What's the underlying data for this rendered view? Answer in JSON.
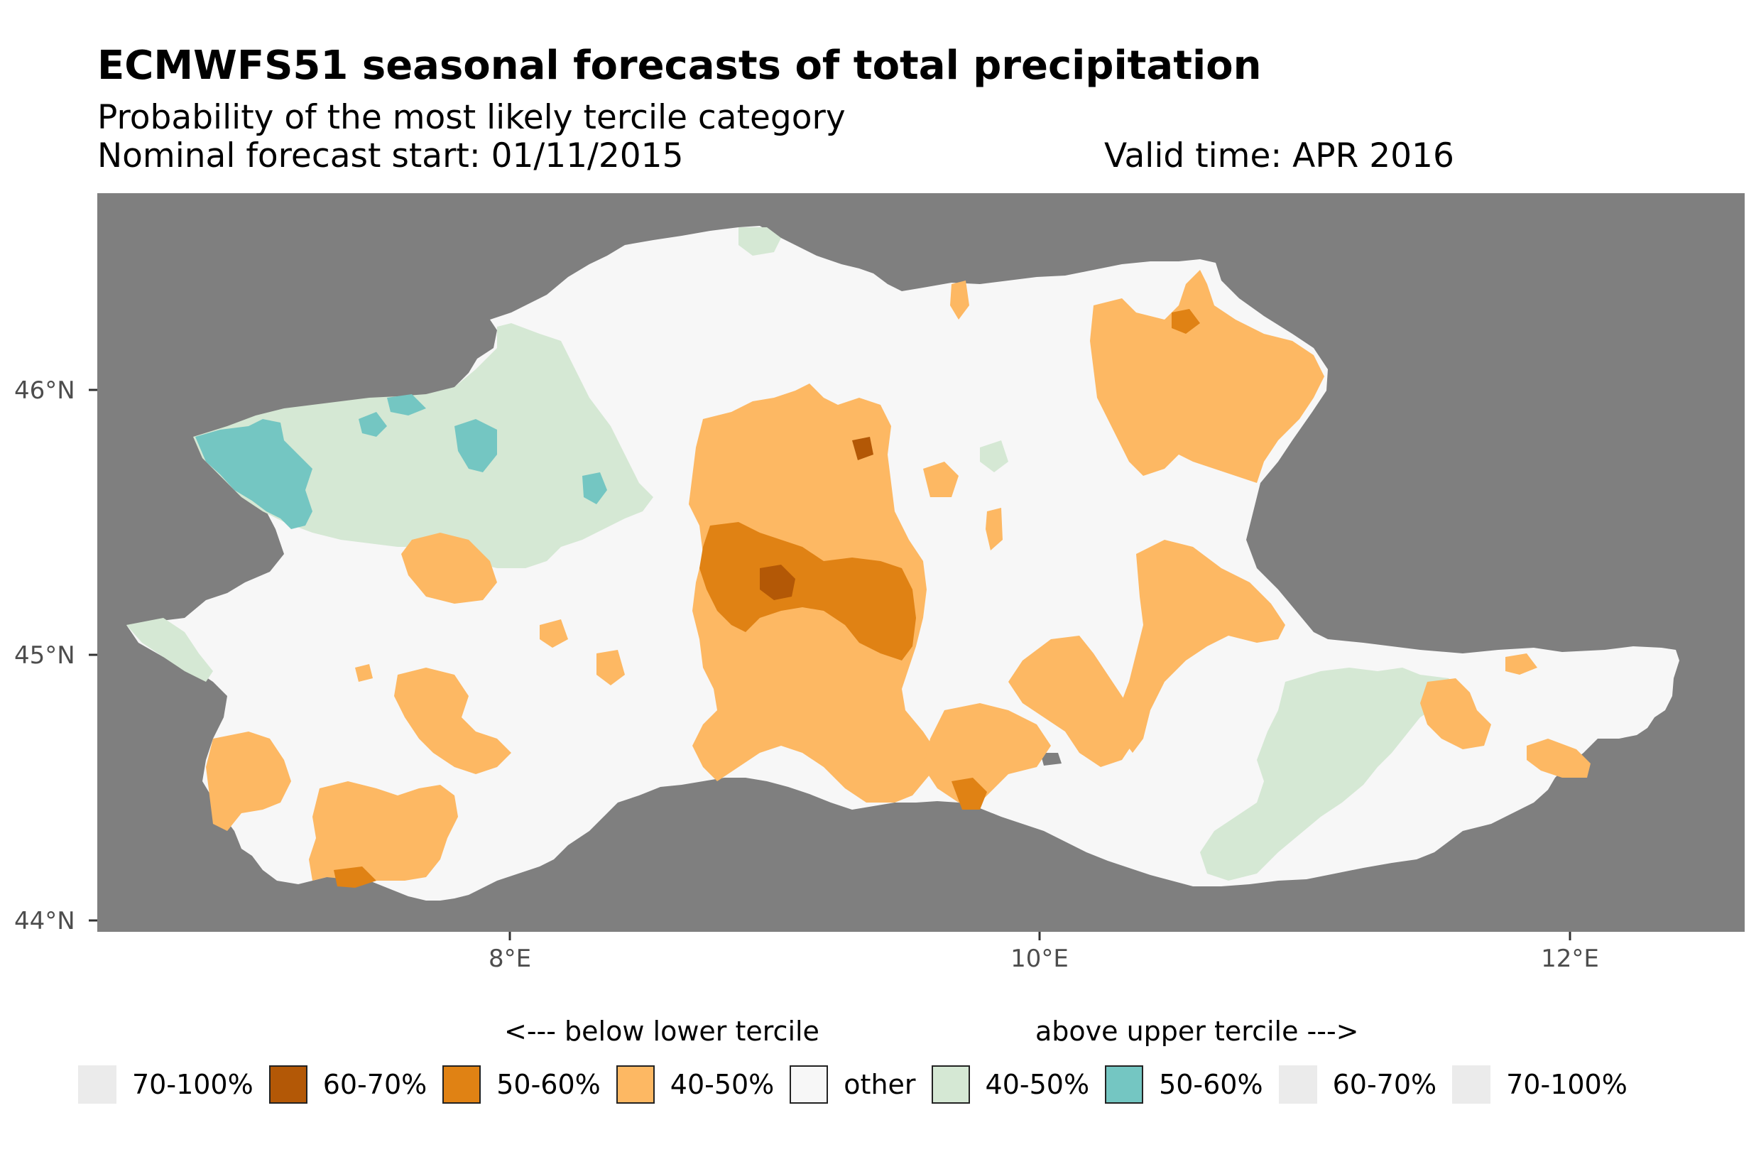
{
  "title": "ECMWFS51 seasonal forecasts of total precipitation",
  "subtitle": "Probability of the most likely tercile category",
  "forecast_start": "Nominal forecast start: 01/11/2015",
  "valid_time": "Valid time: APR 2016",
  "axes": {
    "y_ticks": [
      "46°N",
      "45°N",
      "44°N"
    ],
    "x_ticks": [
      "8°E",
      "10°E",
      "12°E"
    ]
  },
  "legend": {
    "below_label": "<--- below lower tercile",
    "above_label": "above upper tercile --->",
    "items": [
      {
        "label": "70-100%",
        "color": "#ebebeb",
        "blank": true
      },
      {
        "label": "60-70%",
        "color": "#b35806",
        "blank": false
      },
      {
        "label": "50-60%",
        "color": "#e08214",
        "blank": false
      },
      {
        "label": "40-50%",
        "color": "#fdb863",
        "blank": false
      },
      {
        "label": "other",
        "color": "#f7f7f7",
        "blank": false
      },
      {
        "label": "40-50%",
        "color": "#d5e8d4",
        "blank": false
      },
      {
        "label": "50-60%",
        "color": "#74c6c2",
        "blank": false
      },
      {
        "label": "60-70%",
        "color": "#ebebeb",
        "blank": true
      },
      {
        "label": "70-100%",
        "color": "#ebebeb",
        "blank": true
      }
    ]
  },
  "colors": {
    "background": "#7f7f7f",
    "other": "#f7f7f7",
    "below_40_50": "#fdb863",
    "below_50_60": "#e08214",
    "below_60_70": "#b35806",
    "above_40_50": "#d5e8d4",
    "above_50_60": "#74c6c2"
  }
}
